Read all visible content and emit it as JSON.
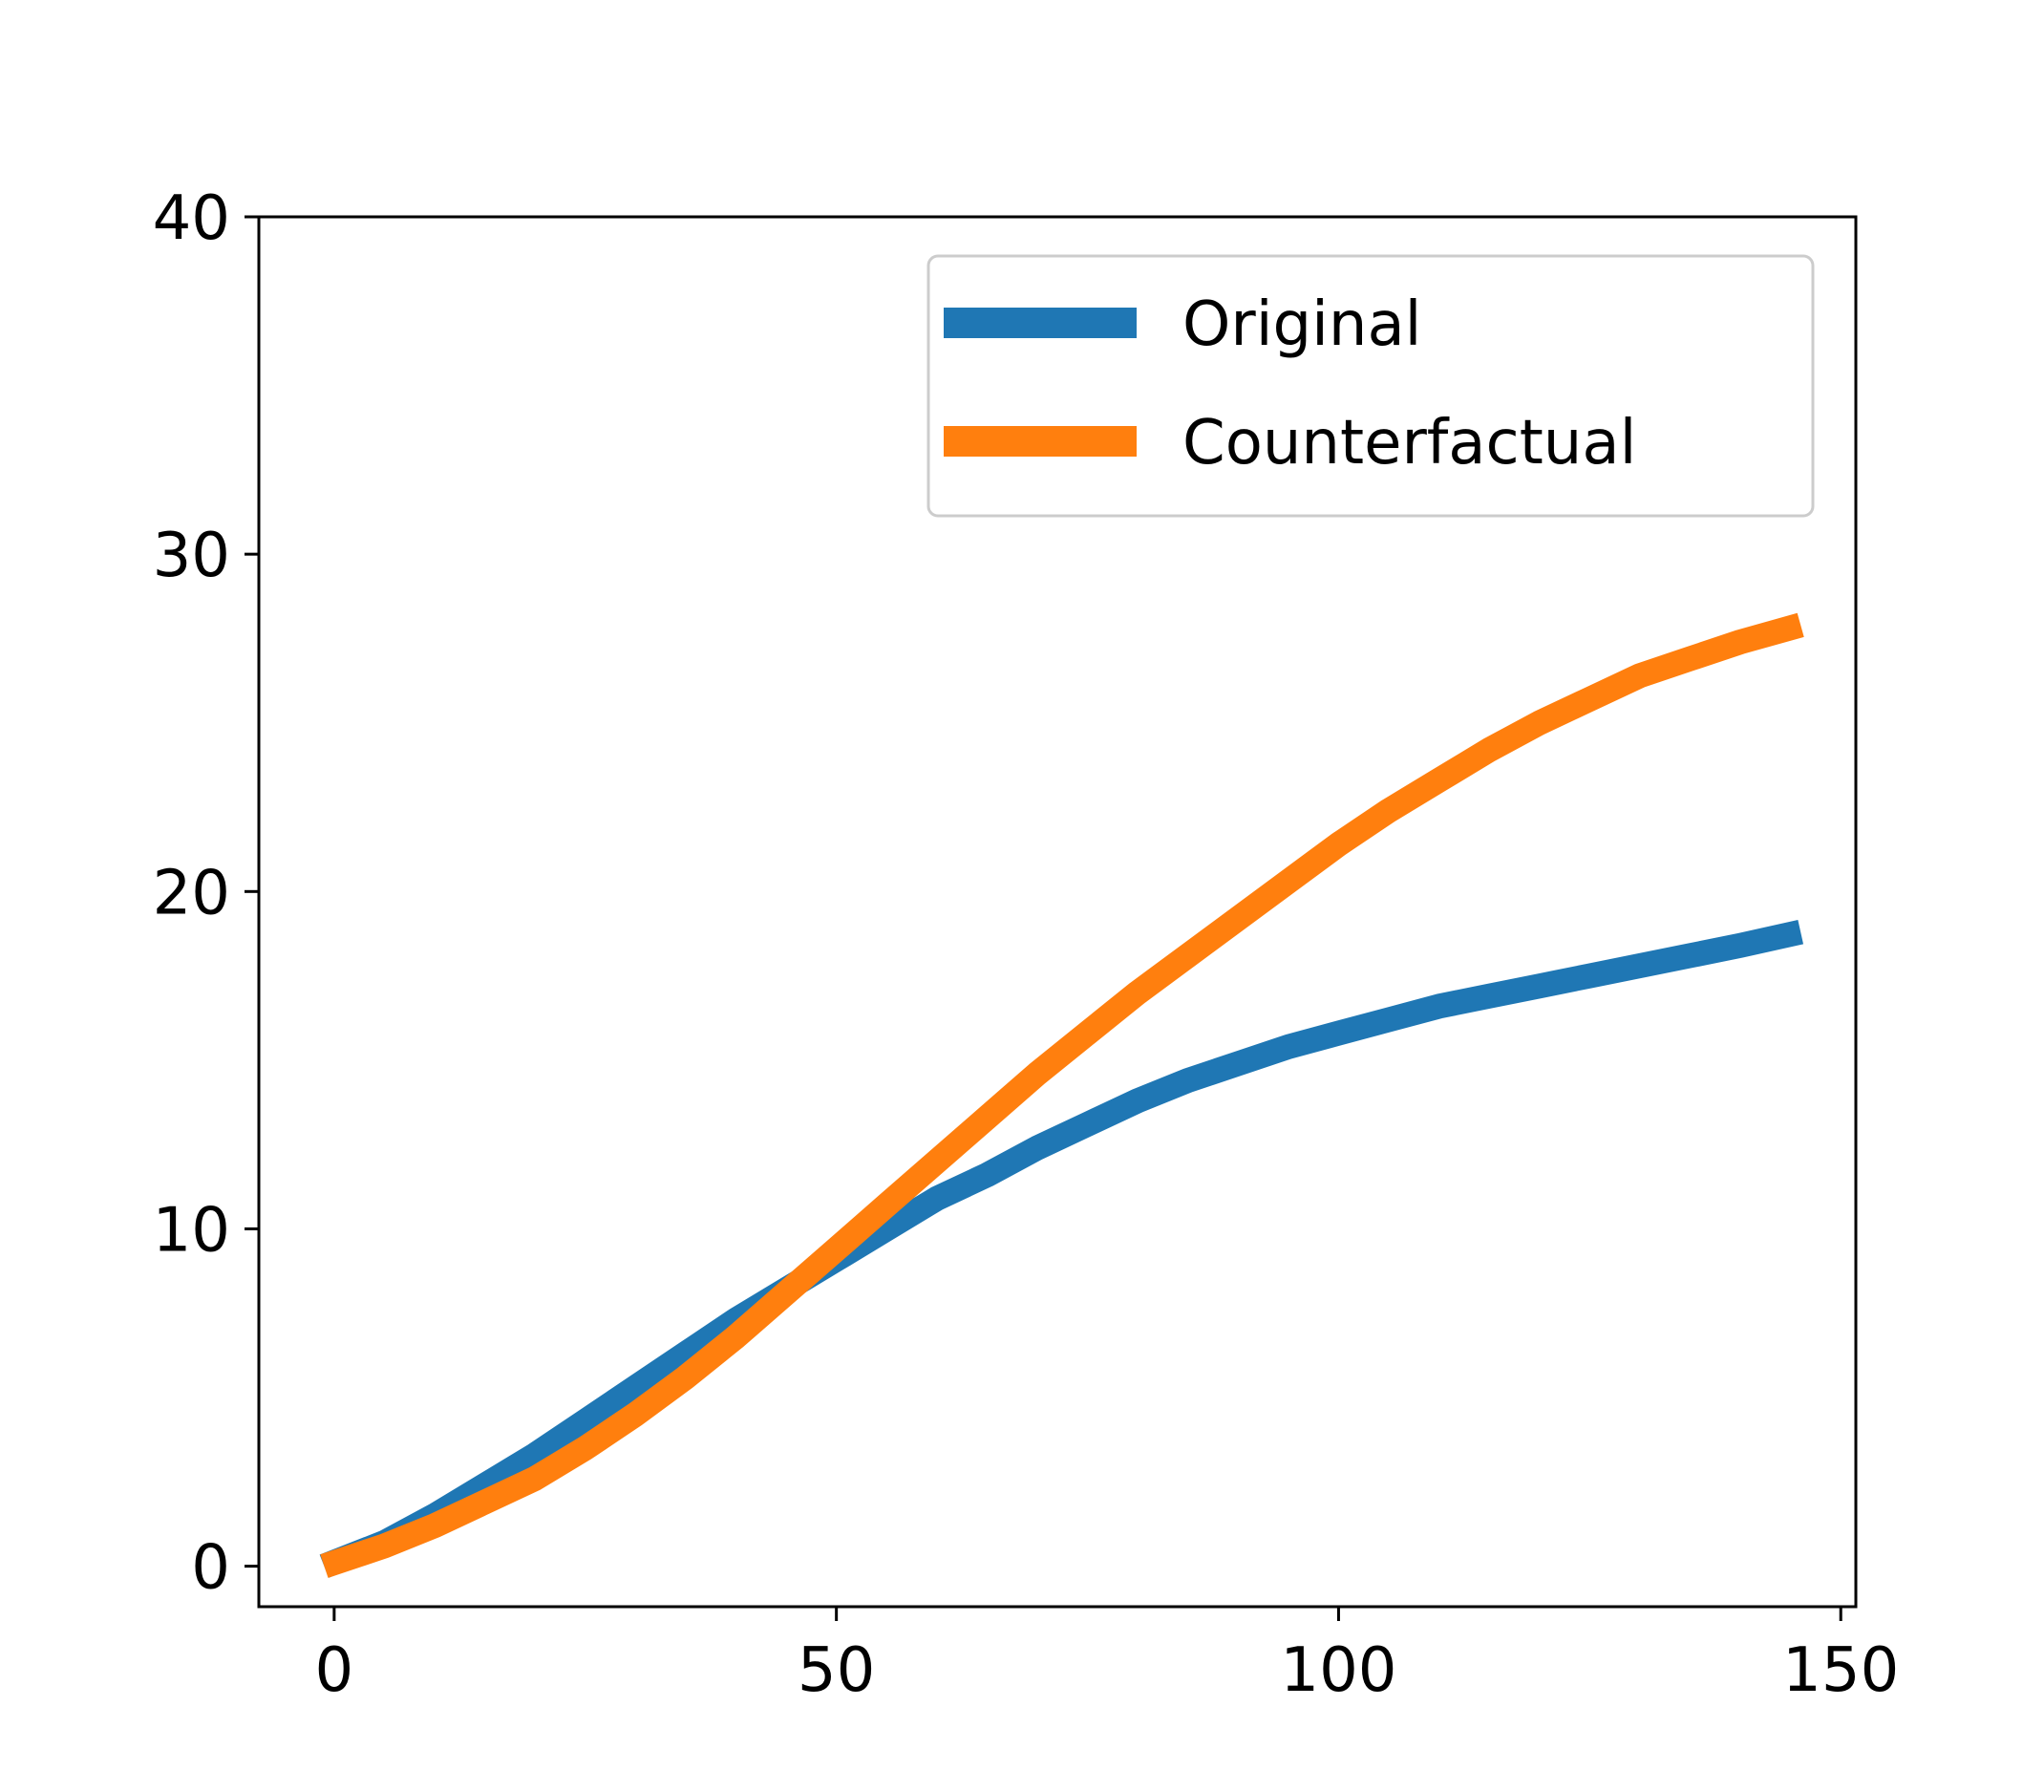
{
  "chart_data": {
    "type": "line",
    "title": "",
    "xlabel": "",
    "ylabel": "",
    "xlim": [
      -7.5,
      151.5
    ],
    "ylim": [
      -1.2,
      40
    ],
    "xticks": [
      0,
      50,
      100,
      150
    ],
    "yticks": [
      0,
      10,
      20,
      30,
      40
    ],
    "grid": false,
    "legend": {
      "placement": "top-right"
    },
    "series": [
      {
        "name": "Original",
        "color": "#1f77b4",
        "x": [
          -1,
          5,
          10,
          15,
          20,
          25,
          30,
          35,
          40,
          45,
          50,
          55,
          60,
          65,
          70,
          75,
          80,
          85,
          90,
          95,
          100,
          105,
          110,
          115,
          120,
          125,
          130,
          135,
          140,
          146
        ],
        "y": [
          0,
          0.7,
          1.5,
          2.4,
          3.3,
          4.3,
          5.3,
          6.3,
          7.3,
          8.2,
          9.1,
          10.0,
          10.9,
          11.6,
          12.4,
          13.1,
          13.8,
          14.4,
          14.9,
          15.4,
          15.8,
          16.2,
          16.6,
          16.9,
          17.2,
          17.5,
          17.8,
          18.1,
          18.4,
          18.8
        ]
      },
      {
        "name": "Counterfactual",
        "color": "#ff7f0e",
        "x": [
          -1,
          5,
          10,
          15,
          20,
          25,
          30,
          35,
          40,
          45,
          50,
          55,
          60,
          65,
          70,
          75,
          80,
          85,
          90,
          95,
          100,
          105,
          110,
          115,
          120,
          125,
          130,
          135,
          140,
          146
        ],
        "y": [
          0,
          0.6,
          1.2,
          1.9,
          2.6,
          3.5,
          4.5,
          5.6,
          6.8,
          8.1,
          9.4,
          10.7,
          12.0,
          13.3,
          14.6,
          15.8,
          17.0,
          18.1,
          19.2,
          20.3,
          21.4,
          22.4,
          23.3,
          24.2,
          25.0,
          25.7,
          26.4,
          26.9,
          27.4,
          27.9
        ]
      }
    ]
  }
}
